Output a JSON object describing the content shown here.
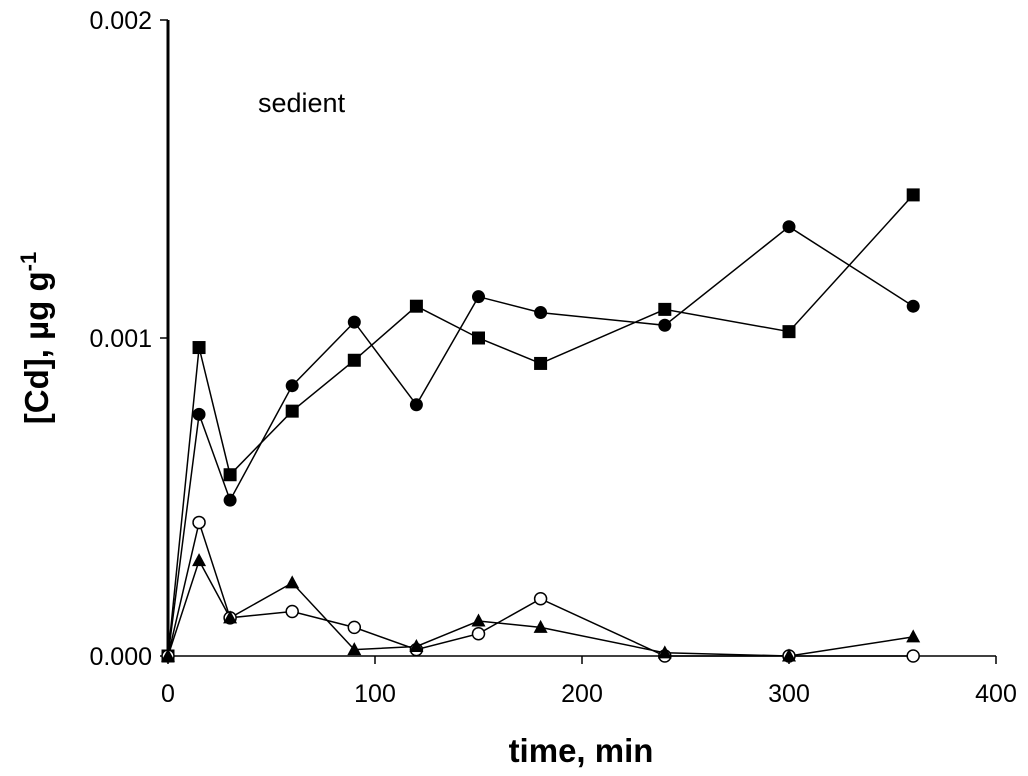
{
  "chart_data": {
    "type": "scatter",
    "annotation": "sedient",
    "xlabel": "time, min",
    "ylabel": "[Cd], µg g",
    "ylabel_superscript": "-1",
    "xlim": [
      0,
      400
    ],
    "ylim": [
      0,
      0.002
    ],
    "xticks": [
      0,
      100,
      200,
      300,
      400
    ],
    "xtick_labels": [
      "0",
      "100",
      "200",
      "300",
      "400"
    ],
    "yticks": [
      0,
      0.001,
      0.002
    ],
    "ytick_labels": [
      "0.000",
      "0.001",
      "0.002"
    ],
    "grid": false,
    "legend": "none",
    "series": [
      {
        "marker": "square",
        "x": [
          0,
          15,
          30,
          60,
          90,
          120,
          150,
          180,
          240,
          300,
          360
        ],
        "y": [
          0,
          0.00097,
          0.00057,
          0.00077,
          0.00093,
          0.0011,
          0.001,
          0.00092,
          0.00109,
          0.00102,
          0.00145
        ]
      },
      {
        "marker": "circle",
        "x": [
          0,
          15,
          30,
          60,
          90,
          120,
          150,
          180,
          240,
          300,
          360
        ],
        "y": [
          0,
          0.00076,
          0.00049,
          0.00085,
          0.00105,
          0.00079,
          0.00113,
          0.00108,
          0.00104,
          0.00135,
          0.0011
        ]
      },
      {
        "marker": "circle-open",
        "x": [
          0,
          15,
          30,
          60,
          90,
          120,
          150,
          180,
          240,
          300,
          360
        ],
        "y": [
          0,
          0.00042,
          0.00012,
          0.00014,
          9e-05,
          2e-05,
          7e-05,
          0.00018,
          0.0,
          0.0,
          0.0
        ]
      },
      {
        "marker": "triangle",
        "x": [
          0,
          15,
          30,
          60,
          90,
          120,
          150,
          180,
          240,
          300,
          360
        ],
        "y": [
          0,
          0.0003,
          0.00012,
          0.00023,
          2e-05,
          3e-05,
          0.00011,
          9e-05,
          1e-05,
          0.0,
          6e-05
        ]
      }
    ]
  }
}
